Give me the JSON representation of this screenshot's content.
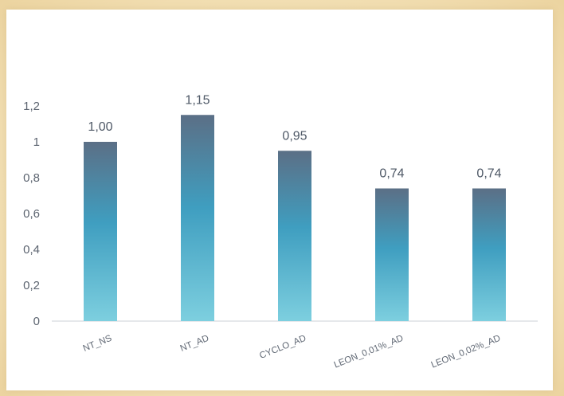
{
  "chart_data": {
    "type": "bar",
    "categories": [
      "NT_NS",
      "NT_AD",
      "CYCLO_AD",
      "LEON_0,01%_AD",
      "LEON_0,02%_AD"
    ],
    "values": [
      1.0,
      1.15,
      0.95,
      0.74,
      0.74
    ],
    "data_labels": [
      "1,00",
      "1,15",
      "0,95",
      "0,74",
      "0,74"
    ],
    "y_ticks": [
      0,
      0.2,
      0.4,
      0.6,
      0.8,
      1,
      1.2
    ],
    "y_tick_labels": [
      "0",
      "0,2",
      "0,4",
      "0,6",
      "0,8",
      "1",
      "1,2"
    ],
    "ylim": [
      0,
      1.2
    ],
    "title": "",
    "xlabel": "",
    "ylabel": "",
    "grid": false,
    "colors": {
      "bar_top": "#5b6f86",
      "bar_mid": "#3f9ec0",
      "bar_bottom": "#7dcfdf",
      "axis": "#d6dadf"
    }
  }
}
